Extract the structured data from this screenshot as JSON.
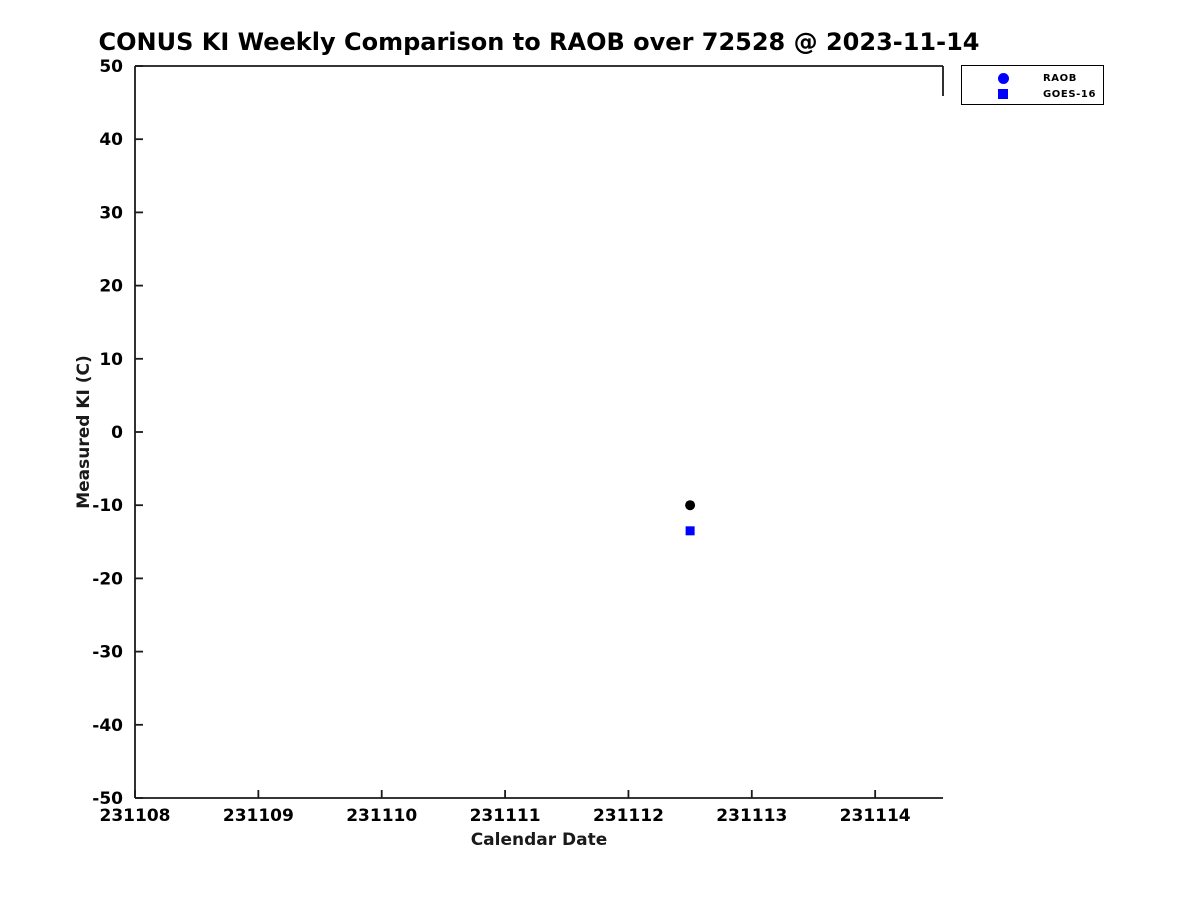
{
  "chart_data": {
    "type": "scatter",
    "title": "CONUS KI Weekly Comparison to RAOB over 72528 @ 2023-11-14",
    "xlabel": "Calendar Date",
    "ylabel": "Measured KI (C)",
    "xlim": [
      231108,
      231114.55
    ],
    "ylim": [
      -50,
      50
    ],
    "x_ticks": [
      231108,
      231109,
      231110,
      231111,
      231112,
      231113,
      231114
    ],
    "y_ticks": [
      50,
      40,
      30,
      20,
      10,
      0,
      -10,
      -20,
      -30,
      -40,
      -50
    ],
    "grid": false,
    "tick_direction": "in",
    "legend_position": "top-right-outside-plot",
    "axis_color": "#1a1a1a",
    "series": [
      {
        "name": "RAOB",
        "marker": "circle",
        "point_color": "#000000",
        "legend_color": "#0000ff",
        "points": [
          {
            "x": 231112.5,
            "y": -10
          }
        ]
      },
      {
        "name": "GOES-16",
        "marker": "square",
        "point_color": "#0000ff",
        "legend_color": "#0000ff",
        "points": [
          {
            "x": 231112.5,
            "y": -13.5
          }
        ]
      }
    ]
  }
}
